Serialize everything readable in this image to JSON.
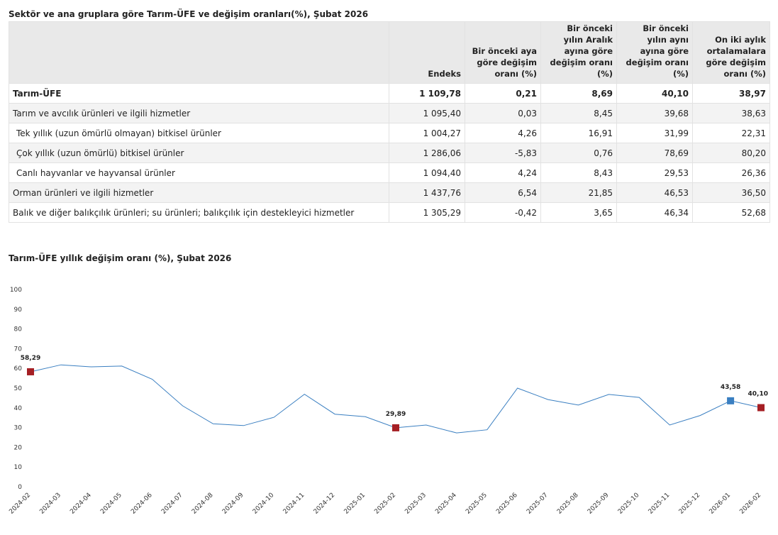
{
  "table": {
    "title": "Sektör ve ana gruplara göre Tarım-ÜFE ve değişim oranları(%), Şubat 2026",
    "headers": {
      "label": "",
      "endeks": "Endeks",
      "monthly": "Bir önceki aya göre değişim oranı (%)",
      "december": "Bir önceki yılın Aralık ayına göre değişim oranı (%)",
      "annual": "Bir önceki yılın aynı ayına göre değişim oranı (%)",
      "twelve_month": "On iki aylık ortalamalara göre değişim oranı (%)"
    },
    "rows": [
      {
        "label": "Tarım-ÜFE",
        "endeks": "1 109,78",
        "monthly": "0,21",
        "december": "8,69",
        "annual": "40,10",
        "twelve_month": "38,97"
      },
      {
        "label": "Tarım ve avcılık ürünleri ve ilgili hizmetler",
        "endeks": "1 095,40",
        "monthly": "0,03",
        "december": "8,45",
        "annual": "39,68",
        "twelve_month": "38,63"
      },
      {
        "label": "Tek yıllık (uzun ömürlü olmayan) bitkisel ürünler",
        "endeks": "1 004,27",
        "monthly": "4,26",
        "december": "16,91",
        "annual": "31,99",
        "twelve_month": "22,31"
      },
      {
        "label": "Çok yıllık (uzun ömürlü) bitkisel ürünler",
        "endeks": "1 286,06",
        "monthly": "-5,83",
        "december": "0,76",
        "annual": "78,69",
        "twelve_month": "80,20"
      },
      {
        "label": "Canlı hayvanlar ve hayvansal ürünler",
        "endeks": "1 094,40",
        "monthly": "4,24",
        "december": "8,43",
        "annual": "29,53",
        "twelve_month": "26,36"
      },
      {
        "label": "Orman ürünleri ve ilgili hizmetler",
        "endeks": "1 437,76",
        "monthly": "6,54",
        "december": "21,85",
        "annual": "46,53",
        "twelve_month": "36,50"
      },
      {
        "label": "Balık ve diğer balıkçılık ürünleri; su ürünleri; balıkçılık için destekleyici hizmetler",
        "endeks": "1 305,29",
        "monthly": "-0,42",
        "december": "3,65",
        "annual": "46,34",
        "twelve_month": "52,68"
      }
    ]
  },
  "chart_data": {
    "type": "line",
    "title": "Tarım-ÜFE yıllık değişim oranı (%), Şubat 2026",
    "xlabel": "",
    "ylabel": "",
    "ylim": [
      0,
      100
    ],
    "yticks": [
      0,
      10,
      20,
      30,
      40,
      50,
      60,
      70,
      80,
      90,
      100
    ],
    "grid": false,
    "line_color": "#3a7fc1",
    "categories": [
      "2024-02",
      "2024-03",
      "2024-04",
      "2024-05",
      "2024-06",
      "2024-07",
      "2024-08",
      "2024-09",
      "2024-10",
      "2024-11",
      "2024-12",
      "2025-01",
      "2025-02",
      "2025-03",
      "2025-04",
      "2025-05",
      "2025-06",
      "2025-07",
      "2025-08",
      "2025-09",
      "2025-10",
      "2025-11",
      "2025-12",
      "2026-01",
      "2026-02"
    ],
    "series": [
      {
        "values": [
          58.29,
          61.8,
          60.8,
          61.2,
          54.5,
          41.0,
          31.9,
          31.0,
          35.2,
          46.9,
          36.8,
          35.5,
          29.89,
          31.3,
          27.3,
          28.9,
          50.0,
          44.2,
          41.4,
          46.8,
          45.3,
          31.3,
          36.1,
          43.58,
          40.1
        ],
        "highlights": [
          {
            "index": 0,
            "label": "58,29",
            "color": "#a51f24"
          },
          {
            "index": 12,
            "label": "29,89",
            "color": "#a51f24"
          },
          {
            "index": 23,
            "label": "43,58",
            "color": "#3a7fc1"
          },
          {
            "index": 24,
            "label": "40,10",
            "color": "#a51f24"
          }
        ]
      }
    ]
  }
}
